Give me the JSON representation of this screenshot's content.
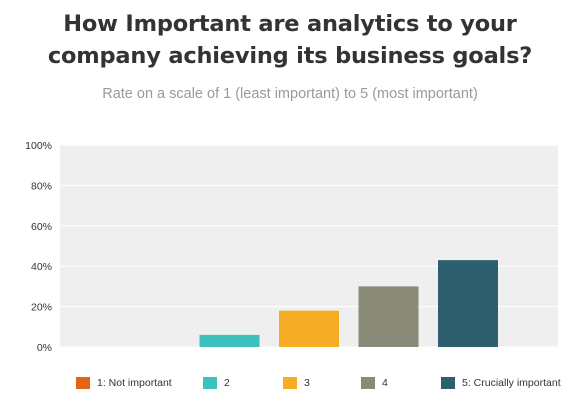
{
  "title_line1": "How Important are analytics to your",
  "title_line2": "company achieving its business goals?",
  "subtitle": "Rate on a scale of 1 (least important) to 5 (most important)",
  "colors": {
    "background": "#ffffff",
    "plot_background": "#efefef",
    "gridline": "#ffffff",
    "axis_text": "#333333",
    "title": "#333333",
    "subtitle": "#9a9a9a"
  },
  "chart_data": {
    "type": "bar",
    "title": "How Important are analytics to your company achieving its business goals?",
    "subtitle": "Rate on a scale of 1 (least important) to 5 (most important)",
    "xlabel": "",
    "ylabel": "",
    "ylim": [
      0,
      100
    ],
    "yticks": [
      "0%",
      "20%",
      "40%",
      "60%",
      "80%",
      "100%"
    ],
    "grid": true,
    "legend_position": "bottom",
    "categories": [
      "1: Not important",
      "2",
      "3",
      "4",
      "5: Crucially important"
    ],
    "values": [
      0,
      6,
      18,
      30,
      43
    ],
    "colors": [
      "#e36414",
      "#3cc1bf",
      "#f5ad26",
      "#8a8a78",
      "#2e5f6e"
    ]
  }
}
